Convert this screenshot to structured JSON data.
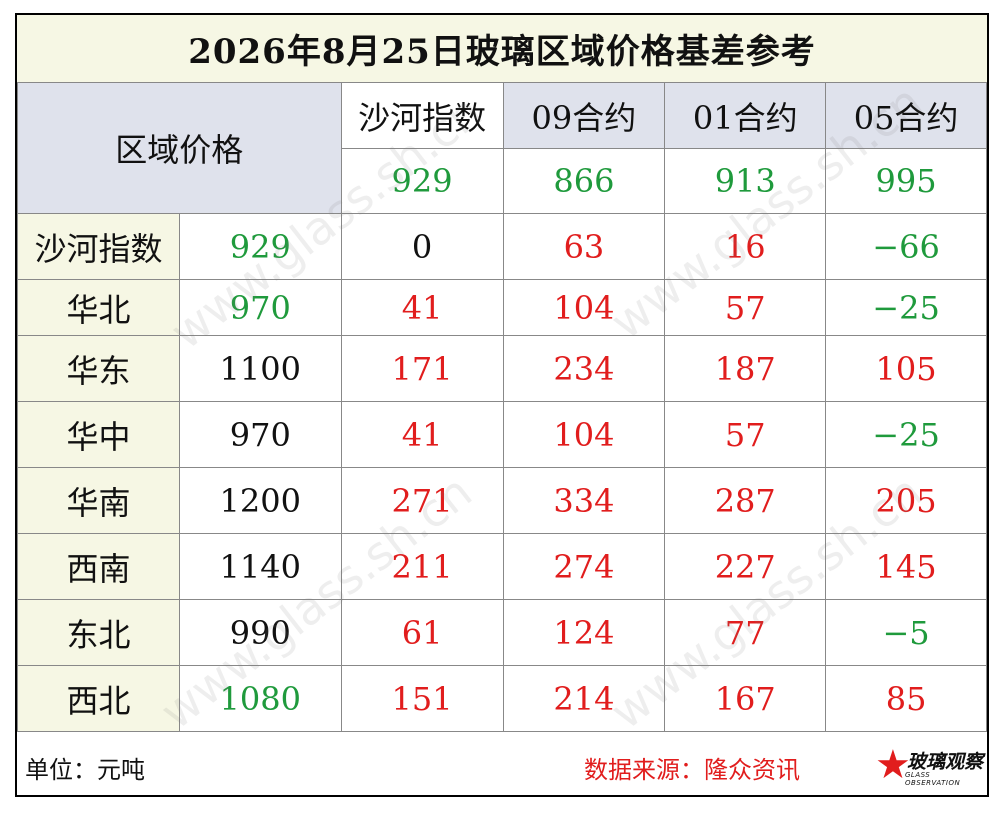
{
  "title": "2026年8月25日玻璃区域价格基差参考",
  "corner_label": "区域价格",
  "columns": [
    "沙河指数",
    "09合约",
    "01合约",
    "05合约"
  ],
  "column_values": [
    "929",
    "866",
    "913",
    "995"
  ],
  "rows": [
    {
      "region": "沙河指数",
      "price": "929",
      "diffs": [
        "0",
        "63",
        "16",
        "−66"
      ]
    },
    {
      "region": "华北",
      "price": "970",
      "diffs": [
        "41",
        "104",
        "57",
        "−25"
      ]
    },
    {
      "region": "华东",
      "price": "1100",
      "diffs": [
        "171",
        "234",
        "187",
        "105"
      ]
    },
    {
      "region": "华中",
      "price": "970",
      "diffs": [
        "41",
        "104",
        "57",
        "−25"
      ]
    },
    {
      "region": "华南",
      "price": "1200",
      "diffs": [
        "271",
        "334",
        "287",
        "205"
      ]
    },
    {
      "region": "西南",
      "price": "1140",
      "diffs": [
        "211",
        "274",
        "227",
        "145"
      ]
    },
    {
      "region": "东北",
      "price": "990",
      "diffs": [
        "61",
        "124",
        "77",
        "−5"
      ]
    },
    {
      "region": "西北",
      "price": "1080",
      "diffs": [
        "151",
        "214",
        "167",
        "85"
      ]
    }
  ],
  "footer": {
    "unit": "单位：元吨",
    "source": "数据来源：隆众资讯",
    "logo_cn": "玻璃观察",
    "logo_en": "GLASS OBSERVATION"
  },
  "watermark": "www.glass.sh.cn",
  "colors": {
    "positive": "#e11d1d",
    "negative": "#1f9a3c",
    "neutral": "#111111",
    "header_bg": "#dfe2ec",
    "title_bg": "#f6f7e4"
  }
}
